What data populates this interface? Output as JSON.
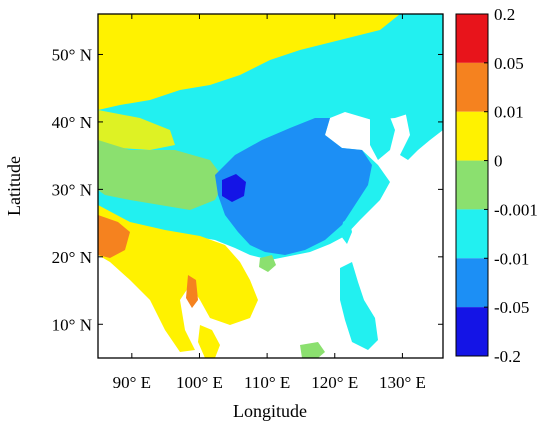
{
  "chart_data": {
    "type": "heatmap",
    "xlabel": "Longitude",
    "ylabel": "Latitude",
    "x_ticks": [
      "90° E",
      "100° E",
      "110° E",
      "120° E",
      "130° E"
    ],
    "x_tick_values": [
      90,
      100,
      110,
      120,
      130
    ],
    "y_ticks": [
      "10° N",
      "20° N",
      "30° N",
      "40° N",
      "50° N"
    ],
    "y_tick_values": [
      10,
      20,
      30,
      40,
      50
    ],
    "xlim": [
      85,
      136
    ],
    "ylim": [
      5,
      56
    ],
    "colorbar": {
      "position": "right",
      "labels": [
        "0.2",
        "0.05",
        "0.01",
        "0",
        "-0.001",
        "-0.01",
        "-0.05",
        "-0.2"
      ],
      "colors": [
        "#e8141b",
        "#f5821f",
        "#fff200",
        "#8be06f",
        "#22f0f0",
        "#1c8ff5",
        "#1414e6"
      ]
    },
    "background_color": "#ffffff"
  }
}
